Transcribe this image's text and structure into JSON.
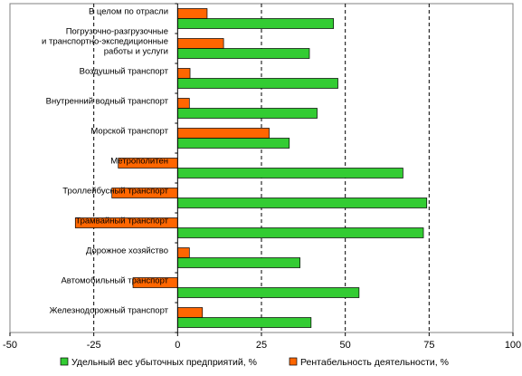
{
  "chart_data": {
    "type": "bar",
    "orientation": "horizontal",
    "categories": [
      "В целом по отрасли",
      "Погрузочно-разгрузочные и транспортно-экспедиционные работы и услуги",
      "Воздушный транспорт",
      "Внутренний водный транспорт",
      "Морской транспорт",
      "Метрополитен",
      "Троллейбусный транспорт",
      "Трамвайный транспорт",
      "Дорожное хозяйство",
      "Автомобильный транспорт",
      "Железнодорожный транспорт"
    ],
    "category_lines": [
      [
        "В целом по отрасли"
      ],
      [
        "Погрузочно-разгрузочные",
        "и транспортно-экспедиционные",
        "работы и услуги"
      ],
      [
        "Воздушный транспорт"
      ],
      [
        "Внутренний водный транспорт"
      ],
      [
        "Морской транспорт"
      ],
      [
        "Метрополитен"
      ],
      [
        "Троллейбусный транспорт"
      ],
      [
        "Трамвайный транспорт"
      ],
      [
        "Дорожное хозяйство"
      ],
      [
        "Автомобильный транспорт"
      ],
      [
        "Железнодорожный транспорт"
      ]
    ],
    "series": [
      {
        "name": "Удельный вес убыточных предприятий, %",
        "color": "#33cc33",
        "values": [
          46.5,
          39.3,
          47.8,
          41.6,
          33.3,
          67.2,
          74.3,
          73.3,
          36.5,
          54.1,
          39.8
        ]
      },
      {
        "name": "Рентабельность деятельности, %",
        "color": "#ff6600",
        "values": [
          8.8,
          13.7,
          3.7,
          3.5,
          27.3,
          -17.7,
          -19.6,
          -30.5,
          3.5,
          -13.3,
          7.4
        ]
      }
    ],
    "xlim": [
      -50,
      100
    ],
    "xticks": [
      "-50",
      "-25",
      "0",
      "25",
      "50",
      "75",
      "100"
    ],
    "grid": "vertical dashed lines",
    "legend_position": "bottom",
    "title": "",
    "xlabel": "",
    "ylabel": ""
  }
}
